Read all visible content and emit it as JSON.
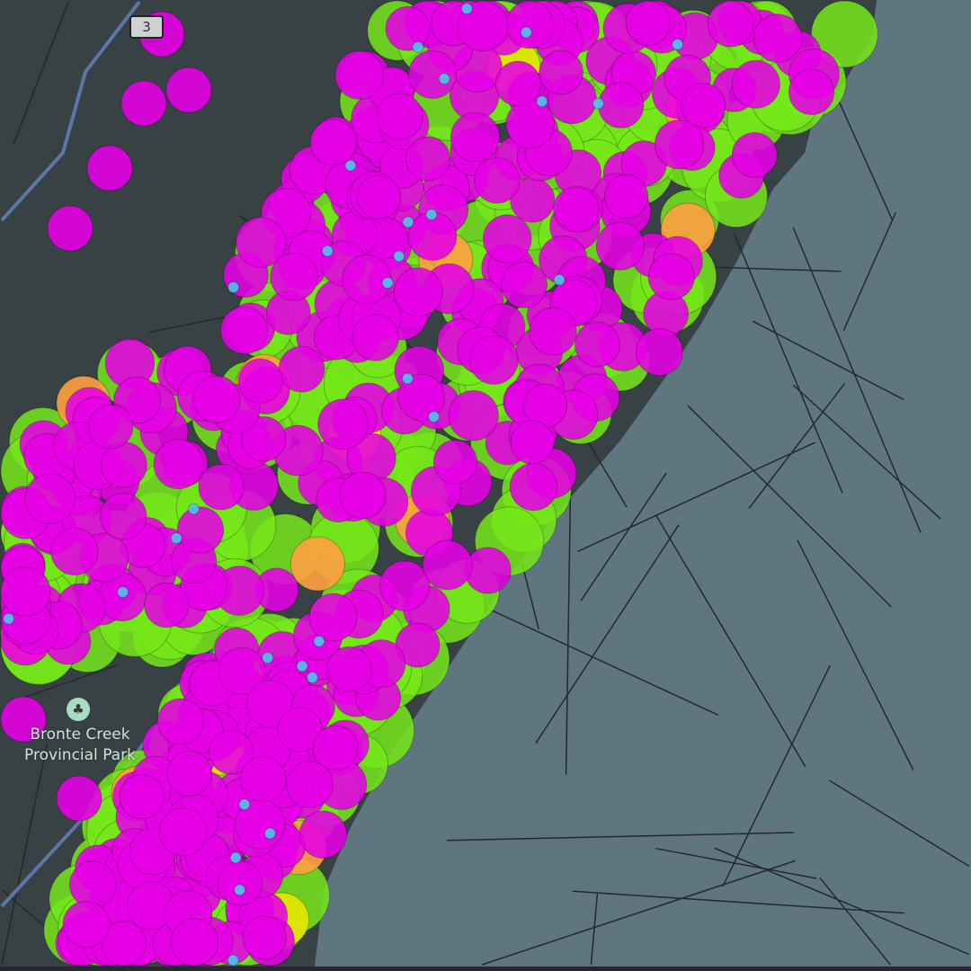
{
  "map": {
    "park_label_line1": "Bronte Creek",
    "park_label_line2": "Provincial Park",
    "park_icon": "tree-icon",
    "highway_shield": "3",
    "colors": {
      "water": "#5f7680",
      "land": "#384144",
      "road": "#25292b",
      "highway": "#5b77a8",
      "marker_green": "#76e81a",
      "marker_magenta": "#e600e6",
      "marker_orange": "#ffa040",
      "marker_yellow": "#e6e600",
      "marker_cyan": "#4fc3e8"
    },
    "marker_categories": [
      "green",
      "magenta",
      "orange",
      "yellow",
      "cyan"
    ]
  }
}
